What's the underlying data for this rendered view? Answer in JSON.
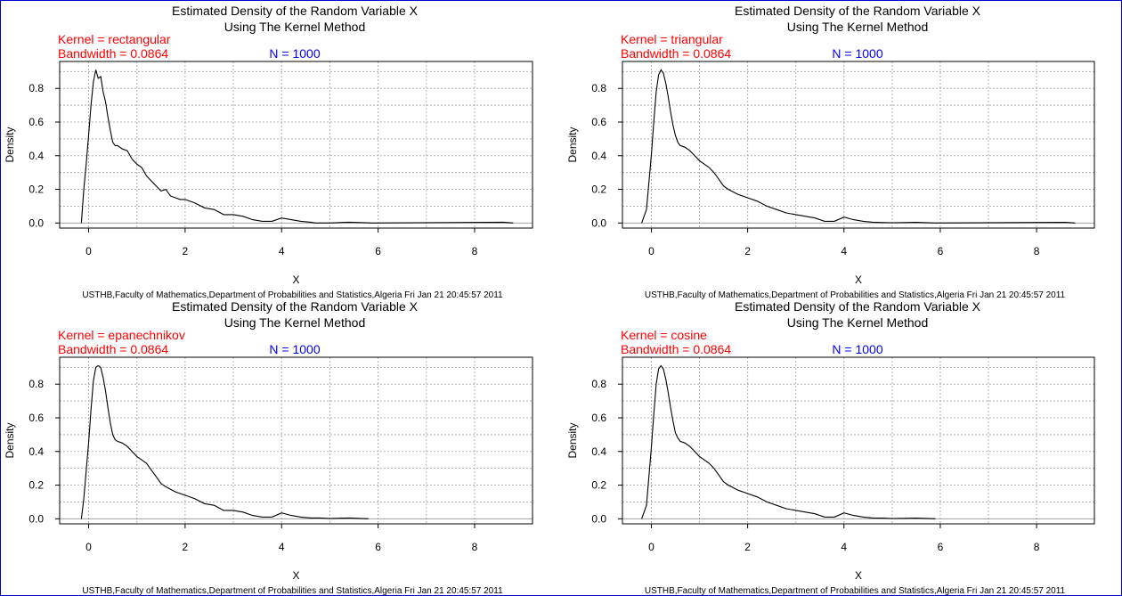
{
  "window": {
    "border_color": "#0000cc"
  },
  "chart_data": [
    {
      "type": "line",
      "title": "Estimated Density of the Random Variable X",
      "subtitle": "Using The Kernel Method",
      "kernel_label": "Kernel = rectangular",
      "bandwidth_label": "Bandwidth = 0.0864",
      "n_label": "N = 1000",
      "xlabel": "X",
      "ylabel": "Density",
      "footer": "USTHB,Faculty of Mathematics,Department of Probabilities and Statistics,Algeria Fri Jan 21 20:45:57 2011",
      "xlim": [
        -0.6,
        9.2
      ],
      "ylim": [
        -0.03,
        0.96
      ],
      "x_ticks": [
        0,
        2,
        4,
        6,
        8
      ],
      "y_ticks": [
        0.0,
        0.2,
        0.4,
        0.6,
        0.8
      ],
      "y_tick_labels": [
        "0.0",
        "0.2",
        "0.4",
        "0.6",
        "0.8"
      ],
      "grid": true,
      "colors": {
        "kernel": "#ff0000",
        "n": "#0000ff",
        "line": "#000000",
        "grid": "#b0b0b0"
      },
      "x": [
        -0.15,
        -0.1,
        -0.05,
        0.0,
        0.05,
        0.1,
        0.15,
        0.2,
        0.25,
        0.3,
        0.35,
        0.4,
        0.45,
        0.5,
        0.55,
        0.6,
        0.7,
        0.8,
        0.9,
        1.0,
        1.1,
        1.2,
        1.3,
        1.4,
        1.5,
        1.6,
        1.7,
        1.8,
        1.9,
        2.0,
        2.2,
        2.4,
        2.6,
        2.8,
        3.0,
        3.2,
        3.4,
        3.6,
        3.8,
        4.0,
        4.2,
        4.4,
        4.6,
        4.7,
        5.0,
        5.4,
        5.9,
        8.6,
        8.8
      ],
      "y": [
        0.0,
        0.2,
        0.35,
        0.52,
        0.7,
        0.84,
        0.91,
        0.86,
        0.87,
        0.78,
        0.72,
        0.63,
        0.55,
        0.48,
        0.46,
        0.46,
        0.44,
        0.43,
        0.38,
        0.35,
        0.33,
        0.28,
        0.25,
        0.22,
        0.19,
        0.2,
        0.16,
        0.15,
        0.14,
        0.14,
        0.12,
        0.09,
        0.08,
        0.05,
        0.05,
        0.04,
        0.02,
        0.01,
        0.01,
        0.03,
        0.02,
        0.01,
        0.005,
        0.0,
        0.0,
        0.005,
        0.0,
        0.005,
        0.0
      ]
    },
    {
      "type": "line",
      "title": "Estimated Density of the Random Variable X",
      "subtitle": "Using The Kernel Method",
      "kernel_label": "Kernel = triangular",
      "bandwidth_label": "Bandwidth = 0.0864",
      "n_label": "N = 1000",
      "xlabel": "X",
      "ylabel": "Density",
      "footer": "USTHB,Faculty of Mathematics,Department of Probabilities and Statistics,Algeria Fri Jan 21 20:45:57 2011",
      "xlim": [
        -0.6,
        9.2
      ],
      "ylim": [
        -0.03,
        0.96
      ],
      "x_ticks": [
        0,
        2,
        4,
        6,
        8
      ],
      "y_ticks": [
        0.0,
        0.2,
        0.4,
        0.6,
        0.8
      ],
      "y_tick_labels": [
        "0.0",
        "0.2",
        "0.4",
        "0.6",
        "0.8"
      ],
      "grid": true,
      "colors": {
        "kernel": "#ff0000",
        "n": "#0000ff",
        "line": "#000000",
        "grid": "#b0b0b0"
      },
      "x": [
        -0.2,
        -0.1,
        0.0,
        0.05,
        0.1,
        0.15,
        0.2,
        0.25,
        0.3,
        0.35,
        0.4,
        0.45,
        0.5,
        0.55,
        0.6,
        0.7,
        0.8,
        0.9,
        1.0,
        1.1,
        1.2,
        1.3,
        1.4,
        1.5,
        1.6,
        1.8,
        2.0,
        2.2,
        2.4,
        2.6,
        2.8,
        3.0,
        3.2,
        3.4,
        3.6,
        3.8,
        4.0,
        4.2,
        4.4,
        4.6,
        4.8,
        5.0,
        5.5,
        5.9,
        8.6,
        8.8
      ],
      "y": [
        0.0,
        0.08,
        0.4,
        0.6,
        0.78,
        0.88,
        0.91,
        0.89,
        0.83,
        0.75,
        0.66,
        0.58,
        0.52,
        0.48,
        0.46,
        0.45,
        0.43,
        0.4,
        0.37,
        0.35,
        0.33,
        0.3,
        0.26,
        0.22,
        0.2,
        0.17,
        0.15,
        0.13,
        0.1,
        0.08,
        0.06,
        0.05,
        0.04,
        0.03,
        0.01,
        0.01,
        0.035,
        0.02,
        0.01,
        0.005,
        0.003,
        0.002,
        0.004,
        0.0,
        0.004,
        0.0
      ]
    },
    {
      "type": "line",
      "title": "Estimated Density of the Random Variable X",
      "subtitle": "Using The Kernel Method",
      "kernel_label": "Kernel = epanechnikov",
      "bandwidth_label": "Bandwidth = 0.0864",
      "n_label": "N = 1000",
      "xlabel": "X",
      "ylabel": "Density",
      "footer": "USTHB,Faculty of Mathematics,Department of Probabilities and Statistics,Algeria Fri Jan 21 20:45:57 2011",
      "xlim": [
        -0.6,
        9.2
      ],
      "ylim": [
        -0.03,
        0.96
      ],
      "x_ticks": [
        0,
        2,
        4,
        6,
        8
      ],
      "y_ticks": [
        0.0,
        0.2,
        0.4,
        0.6,
        0.8
      ],
      "y_tick_labels": [
        "0.0",
        "0.2",
        "0.4",
        "0.6",
        "0.8"
      ],
      "grid": true,
      "colors": {
        "kernel": "#ff0000",
        "n": "#0000ff",
        "line": "#000000",
        "grid": "#b0b0b0"
      },
      "x": [
        -0.15,
        -0.1,
        0.0,
        0.05,
        0.1,
        0.15,
        0.2,
        0.25,
        0.3,
        0.35,
        0.4,
        0.45,
        0.5,
        0.55,
        0.6,
        0.7,
        0.8,
        0.9,
        1.0,
        1.1,
        1.2,
        1.3,
        1.4,
        1.5,
        1.6,
        1.8,
        2.0,
        2.2,
        2.4,
        2.6,
        2.8,
        3.0,
        3.2,
        3.4,
        3.6,
        3.8,
        4.0,
        4.2,
        4.4,
        4.6,
        4.8,
        5.0,
        5.4,
        5.8
      ],
      "y": [
        0.0,
        0.12,
        0.45,
        0.65,
        0.82,
        0.9,
        0.91,
        0.9,
        0.84,
        0.76,
        0.66,
        0.57,
        0.5,
        0.47,
        0.46,
        0.45,
        0.43,
        0.4,
        0.37,
        0.35,
        0.33,
        0.29,
        0.25,
        0.21,
        0.19,
        0.16,
        0.14,
        0.12,
        0.09,
        0.08,
        0.05,
        0.05,
        0.04,
        0.02,
        0.01,
        0.01,
        0.035,
        0.02,
        0.01,
        0.005,
        0.005,
        0.002,
        0.005,
        0.0
      ]
    },
    {
      "type": "line",
      "title": "Estimated Density of the Random Variable X",
      "subtitle": "Using The Kernel Method",
      "kernel_label": "Kernel = cosine",
      "bandwidth_label": "Bandwidth = 0.0864",
      "n_label": "N = 1000",
      "xlabel": "X",
      "ylabel": "Density",
      "footer": "USTHB,Faculty of Mathematics,Department of Probabilities and Statistics,Algeria Fri Jan 21 20:45:57 2011",
      "xlim": [
        -0.6,
        9.2
      ],
      "ylim": [
        -0.03,
        0.96
      ],
      "x_ticks": [
        0,
        2,
        4,
        6,
        8
      ],
      "y_ticks": [
        0.0,
        0.2,
        0.4,
        0.6,
        0.8
      ],
      "y_tick_labels": [
        "0.0",
        "0.2",
        "0.4",
        "0.6",
        "0.8"
      ],
      "grid": true,
      "colors": {
        "kernel": "#ff0000",
        "n": "#0000ff",
        "line": "#000000",
        "grid": "#b0b0b0"
      },
      "x": [
        -0.2,
        -0.1,
        0.0,
        0.05,
        0.1,
        0.15,
        0.2,
        0.25,
        0.3,
        0.35,
        0.4,
        0.45,
        0.5,
        0.55,
        0.6,
        0.7,
        0.8,
        0.9,
        1.0,
        1.1,
        1.2,
        1.3,
        1.4,
        1.5,
        1.6,
        1.8,
        2.0,
        2.2,
        2.4,
        2.6,
        2.8,
        3.0,
        3.2,
        3.4,
        3.6,
        3.8,
        4.0,
        4.2,
        4.4,
        4.6,
        4.8,
        5.0,
        5.5,
        5.9
      ],
      "y": [
        0.0,
        0.08,
        0.42,
        0.62,
        0.8,
        0.89,
        0.91,
        0.89,
        0.83,
        0.75,
        0.66,
        0.58,
        0.51,
        0.48,
        0.46,
        0.45,
        0.43,
        0.4,
        0.37,
        0.35,
        0.33,
        0.3,
        0.26,
        0.22,
        0.2,
        0.17,
        0.15,
        0.13,
        0.1,
        0.08,
        0.06,
        0.05,
        0.04,
        0.03,
        0.01,
        0.01,
        0.035,
        0.02,
        0.01,
        0.005,
        0.004,
        0.002,
        0.004,
        0.0
      ]
    }
  ]
}
